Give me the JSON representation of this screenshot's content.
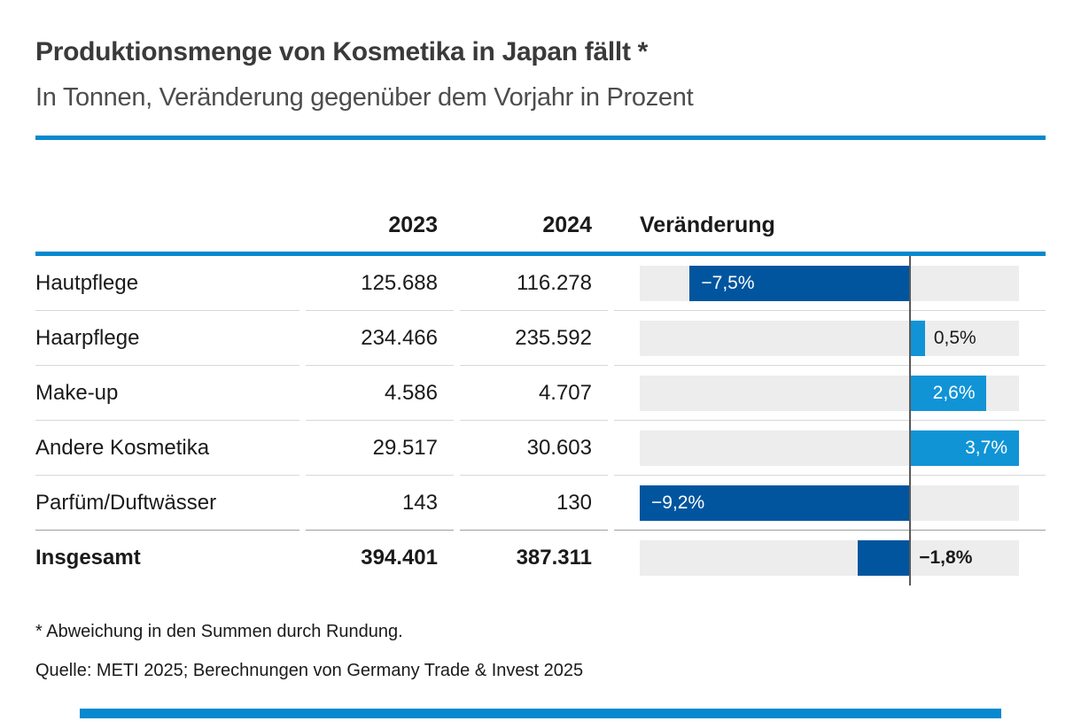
{
  "header": {
    "title": "Produktionsmenge von Kosmetika in Japan fällt *",
    "subtitle": "In Tonnen, Veränderung gegenüber dem Vorjahr in Prozent"
  },
  "table": {
    "col_2023": "2023",
    "col_2024": "2024",
    "col_change": "Veränderung"
  },
  "rows": [
    {
      "label": "Hautpflege",
      "y2023": "125.688",
      "y2024": "116.278",
      "change": -7.5,
      "change_label": "−7,5%",
      "label_pos": "inside-left",
      "bold": false
    },
    {
      "label": "Haarpflege",
      "y2023": "234.466",
      "y2024": "235.592",
      "change": 0.5,
      "change_label": "0,5%",
      "label_pos": "outside-right",
      "bold": false
    },
    {
      "label": "Make-up",
      "y2023": "4.586",
      "y2024": "4.707",
      "change": 2.6,
      "change_label": "2,6%",
      "label_pos": "inside-right",
      "bold": false
    },
    {
      "label": "Andere Kosmetika",
      "y2023": "29.517",
      "y2024": "30.603",
      "change": 3.7,
      "change_label": "3,7%",
      "label_pos": "inside-right",
      "bold": false
    },
    {
      "label": "Parfüm/Duftwässer",
      "y2023": "143",
      "y2024": "130",
      "change": -9.2,
      "change_label": "−9,2%",
      "label_pos": "inside-left",
      "bold": false
    },
    {
      "label": "Insgesamt",
      "y2023": "394.401",
      "y2024": "387.311",
      "change": -1.8,
      "change_label": "−1,8%",
      "label_pos": "outside-right",
      "bold": true
    }
  ],
  "chart_data": {
    "type": "bar",
    "orientation": "horizontal-diverging",
    "title": "Produktionsmenge von Kosmetika in Japan fällt *",
    "subtitle": "In Tonnen, Veränderung gegenüber dem Vorjahr in Prozent",
    "categories": [
      "Hautpflege",
      "Haarpflege",
      "Make-up",
      "Andere Kosmetika",
      "Parfüm/Duftwässer",
      "Insgesamt"
    ],
    "series": [
      {
        "name": "2023",
        "values": [
          125688,
          234466,
          4586,
          29517,
          143,
          394401
        ]
      },
      {
        "name": "2024",
        "values": [
          116278,
          235592,
          4707,
          30603,
          130,
          387311
        ]
      },
      {
        "name": "Veränderung %",
        "values": [
          -7.5,
          0.5,
          2.6,
          3.7,
          -9.2,
          -1.8
        ]
      }
    ],
    "value_labels": [
      "−7,5%",
      "0,5%",
      "2,6%",
      "3,7%",
      "−9,2%",
      "−1,8%"
    ],
    "xlim": [
      -9.2,
      3.7
    ],
    "grid": false,
    "legend": false
  },
  "footer": {
    "note": "* Abweichung in den Summen durch Rundung.",
    "source": "Quelle: METI 2025; Berechnungen von Germany Trade & Invest 2025"
  },
  "colors": {
    "accent_blue": "#0689ce",
    "bar_positive": "#1094d6",
    "bar_negative": "#00559e",
    "track": "#ededed",
    "zero_line": "#5a5a5a",
    "separator": "#d8d8d8",
    "separator_strong": "#9e9e9e",
    "text": "#1a1a1a"
  }
}
